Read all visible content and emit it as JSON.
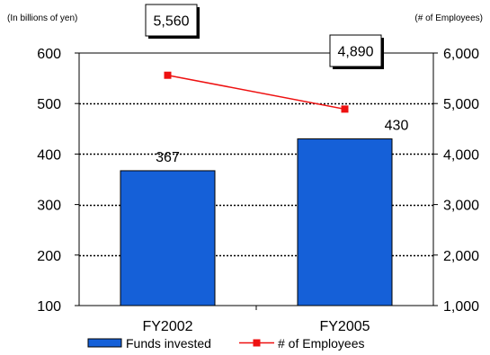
{
  "chart_data": {
    "type": "bar",
    "categories": [
      "FY2002",
      "FY2005"
    ],
    "series": [
      {
        "name": "Funds invested",
        "type": "bar",
        "axis": "left",
        "values": [
          367,
          430
        ],
        "color": "#1560D8",
        "labels": [
          "367",
          "430"
        ]
      },
      {
        "name": "# of Employees",
        "type": "line",
        "axis": "right",
        "values": [
          5560,
          4890
        ],
        "color": "#EE1111",
        "labels": [
          "5,560",
          "4,890"
        ]
      }
    ],
    "left_axis": {
      "label": "(In billions of yen)",
      "ylim": [
        100,
        600
      ],
      "ticks": [
        100,
        200,
        300,
        400,
        500,
        600
      ],
      "tick_labels": [
        "100",
        "200",
        "300",
        "400",
        "500",
        "600"
      ]
    },
    "right_axis": {
      "label": "(# of  Employees)",
      "ylim": [
        1000,
        6000
      ],
      "ticks": [
        1000,
        2000,
        3000,
        4000,
        5000,
        6000
      ],
      "tick_labels": [
        "1,000",
        "2,000",
        "3,000",
        "4,000",
        "5,000",
        "6,000"
      ]
    },
    "grid": "dotted horizontal",
    "legend_position": "bottom-center",
    "plot_border": "black"
  }
}
